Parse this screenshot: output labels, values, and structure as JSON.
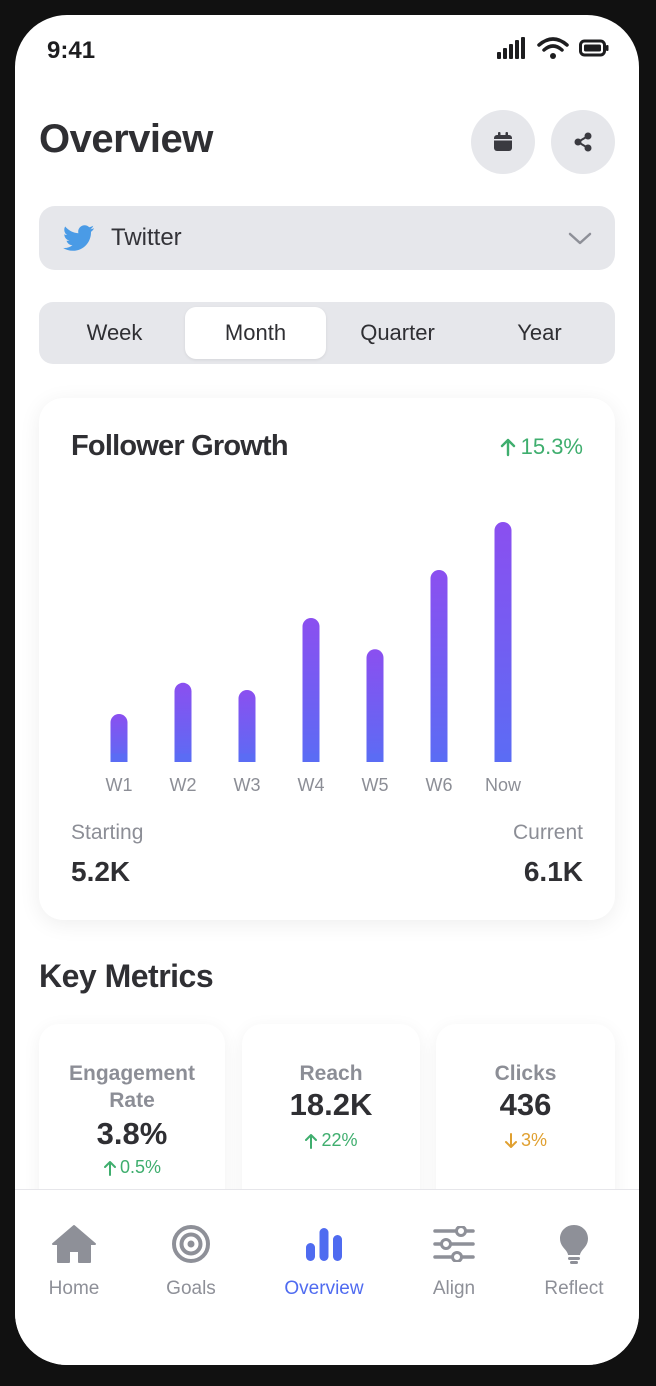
{
  "status_bar": {
    "time": "9:41"
  },
  "header": {
    "title": "Overview",
    "calendar_icon": "calendar-icon",
    "share_icon": "share-icon"
  },
  "platform": {
    "selected": "Twitter",
    "icon": "twitter-bird-icon"
  },
  "periods": {
    "options": [
      "Week",
      "Month",
      "Quarter",
      "Year"
    ],
    "selected": "Month"
  },
  "follower_card": {
    "title": "Follower Growth",
    "growth": "15.3%",
    "starting_label": "Starting",
    "starting_value": "5.2K",
    "current_label": "Current",
    "current_value": "6.1K"
  },
  "chart_data": {
    "type": "bar",
    "categories": [
      "W1",
      "W2",
      "W3",
      "W4",
      "W5",
      "W6",
      "Now"
    ],
    "values": [
      20,
      33,
      30,
      60,
      47,
      80,
      100
    ],
    "ylim": [
      0,
      100
    ],
    "grid": false,
    "colors": {
      "top": "#8b4ff0",
      "bottom": "#5b6cf4"
    }
  },
  "key_metrics": {
    "title": "Key Metrics",
    "items": [
      {
        "label": "Engagement Rate",
        "value": "3.8%",
        "delta": "0.5%",
        "direction": "up",
        "color": "#3fae6e"
      },
      {
        "label": "Reach",
        "value": "18.2K",
        "delta": "22%",
        "direction": "up",
        "color": "#3fae6e"
      },
      {
        "label": "Clicks",
        "value": "436",
        "delta": "3%",
        "direction": "down",
        "color": "#e0a030"
      }
    ]
  },
  "tab_bar": {
    "items": [
      {
        "label": "Home",
        "icon": "home-icon"
      },
      {
        "label": "Goals",
        "icon": "target-icon"
      },
      {
        "label": "Overview",
        "icon": "bar-chart-icon"
      },
      {
        "label": "Align",
        "icon": "sliders-icon"
      },
      {
        "label": "Reflect",
        "icon": "lightbulb-icon"
      }
    ],
    "active": "Overview"
  },
  "colors": {
    "accent": "#4f6bf0",
    "positive": "#3fae6e",
    "negative": "#e0a030",
    "twitter": "#4a9be6"
  }
}
